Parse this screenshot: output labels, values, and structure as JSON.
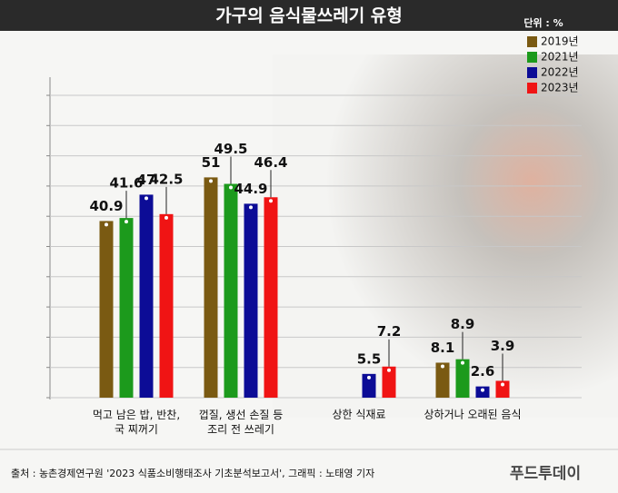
{
  "chart_data": {
    "type": "bar",
    "title": "가구의 음식물쓰레기 유형",
    "unit": "단위 : %",
    "categories": [
      "먹고 남은 밥, 반찬, 국 찌꺼기",
      "껍질, 생선 손질 등 조리 전 쓰레기",
      "상한 식재료",
      "상하거나 오래된 음식"
    ],
    "series": [
      {
        "name": "2019년",
        "color": "#7a5a12",
        "values": [
          40.9,
          51.0,
          null,
          8.1
        ]
      },
      {
        "name": "2021년",
        "color": "#1c9a1c",
        "values": [
          41.6,
          49.5,
          null,
          8.9
        ]
      },
      {
        "name": "2022년",
        "color": "#0c0c96",
        "values": [
          47.0,
          44.9,
          5.5,
          2.6
        ]
      },
      {
        "name": "2023년",
        "color": "#f01414",
        "values": [
          42.5,
          46.4,
          7.2,
          3.9
        ]
      }
    ],
    "ylim": [
      0,
      70
    ],
    "yticks": [
      0,
      7,
      14,
      21,
      28,
      35,
      42,
      49,
      56,
      63,
      70
    ],
    "grid": true,
    "source": "출처 : 농촌경제연구원 '2023 식품소비행태조사 기초분석보고서', 그래픽 : 노태영 기자",
    "logo": "푸드투데이"
  }
}
